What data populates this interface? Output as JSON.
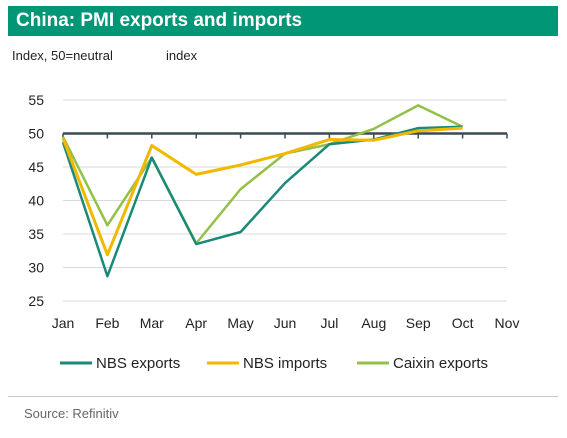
{
  "header": {
    "title": "China: PMI exports and imports",
    "subtitle_left": "Index, 50=neutral",
    "subtitle_right": "index"
  },
  "footer": {
    "source": "Source: Refinitiv"
  },
  "chart_data": {
    "type": "line",
    "categories": [
      "Jan",
      "Feb",
      "Mar",
      "Apr",
      "May",
      "Jun",
      "Jul",
      "Aug",
      "Sep",
      "Oct",
      "Nov"
    ],
    "ylim": [
      25,
      55
    ],
    "yticks": [
      25,
      30,
      35,
      40,
      45,
      50,
      55
    ],
    "reference_line": 50,
    "grid": true,
    "legend": "bottom",
    "series": [
      {
        "name": "NBS exports",
        "color": "#1a8a78",
        "values": [
          48.7,
          28.7,
          46.4,
          33.5,
          35.3,
          42.6,
          48.4,
          49.1,
          50.8,
          51.0,
          null
        ]
      },
      {
        "name": "NBS imports",
        "color": "#f2b800",
        "values": [
          49.3,
          31.9,
          48.2,
          43.9,
          45.3,
          47.0,
          49.1,
          49.0,
          50.4,
          50.8,
          null
        ]
      },
      {
        "name": "Caixin exports",
        "color": "#93c047",
        "values": [
          49.5,
          36.3,
          46.4,
          33.6,
          41.7,
          47.0,
          48.4,
          50.7,
          54.2,
          51.0,
          null
        ]
      }
    ]
  }
}
